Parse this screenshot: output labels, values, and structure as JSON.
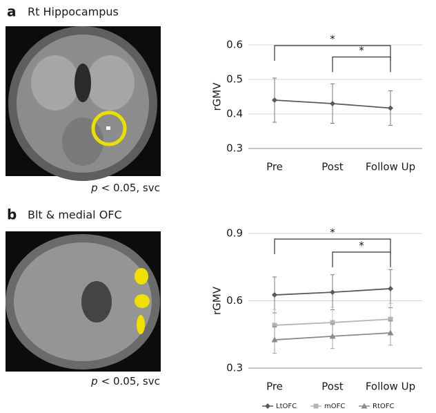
{
  "chart_data": [
    {
      "type": "line",
      "panel": "a",
      "image_title": "Rt Hippocampus",
      "caption": [
        "p",
        "< 0.05, svc"
      ],
      "ylabel": "rGMV",
      "categories": [
        "Pre",
        "Post",
        "Follow Up"
      ],
      "ylim": [
        0.3,
        0.6
      ],
      "yticks": [
        0.3,
        0.4,
        0.5,
        0.6
      ],
      "grid": true,
      "series": [
        {
          "color": "#5a5a5a",
          "marker": "diamond",
          "values": [
            0.44,
            0.43,
            0.417
          ],
          "errors": [
            0.064,
            0.057,
            0.05
          ]
        }
      ],
      "significance": [
        {
          "from": "Pre",
          "to": "Follow Up",
          "y": 0.598,
          "label": "*"
        },
        {
          "from": "Post",
          "to": "Follow Up",
          "y": 0.565,
          "label": "*"
        }
      ]
    },
    {
      "type": "line",
      "panel": "b",
      "image_title": "Blt  & medial OFC",
      "caption": [
        "p",
        "< 0.05, svc"
      ],
      "ylabel": "rGMV",
      "categories": [
        "Pre",
        "Post",
        "Follow Up"
      ],
      "ylim": [
        0.3,
        0.9
      ],
      "yticks": [
        0.3,
        0.6,
        0.9
      ],
      "grid": true,
      "legend": "bottom",
      "series": [
        {
          "name": "LtOFC",
          "color": "#5a5a5a",
          "marker": "diamond",
          "values": [
            0.626,
            0.638,
            0.654
          ],
          "errors": [
            0.08,
            0.078,
            0.085
          ]
        },
        {
          "name": "mOFC",
          "color": "#b4b4b4",
          "marker": "square",
          "values": [
            0.491,
            0.503,
            0.518
          ],
          "errors": [
            0.07,
            0.068,
            0.07
          ]
        },
        {
          "name": "RtOFC",
          "color": "#8a8a8a",
          "marker": "triangle",
          "values": [
            0.426,
            0.442,
            0.457
          ],
          "errors": [
            0.06,
            0.055,
            0.055
          ]
        }
      ],
      "significance": [
        {
          "from": "Pre",
          "to": "Follow Up",
          "y": 0.875,
          "label": "*"
        },
        {
          "from": "Post",
          "to": "Follow Up",
          "y": 0.817,
          "label": "*"
        }
      ]
    }
  ]
}
